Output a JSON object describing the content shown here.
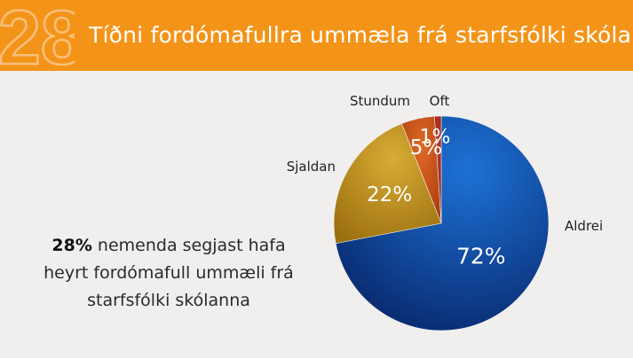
{
  "header": {
    "title": "Tíðni fordómafullra ummæla frá starfsfólki skóla",
    "background": "#f39419",
    "logo": "28"
  },
  "chart_data": {
    "type": "pie",
    "slices": [
      {
        "label": "Aldrei",
        "value": 72,
        "value_label": "72%",
        "color": "#0a4fa8"
      },
      {
        "label": "Sjaldan",
        "value": 22,
        "value_label": "22%",
        "color": "#c2951d"
      },
      {
        "label": "Stundum",
        "value": 5,
        "value_label": "5%",
        "color": "#c9541a"
      },
      {
        "label": "Oft",
        "value": 1,
        "value_label": "1%",
        "color": "#a12a1e"
      }
    ],
    "start": "12 o'clock, clockwise"
  },
  "note": {
    "highlight": "28%",
    "line1": " nemenda segjast hafa",
    "line2": "heyrt fordómafull ummæli frá",
    "line3": "starfsfólki skólanna"
  }
}
